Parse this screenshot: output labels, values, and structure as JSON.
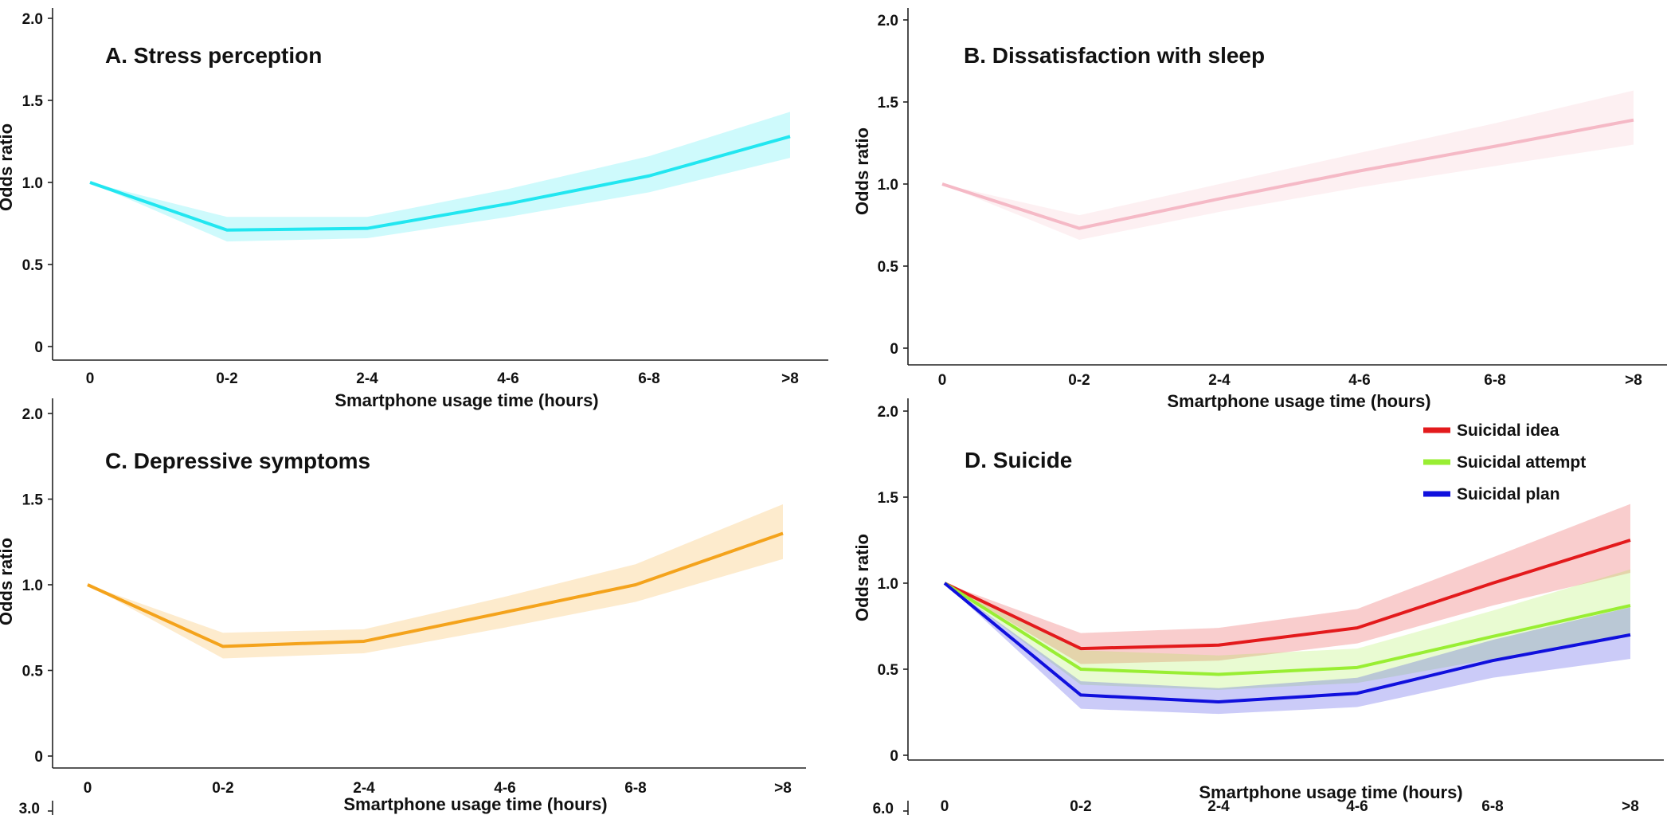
{
  "figure_title": "",
  "chart_data": [
    {
      "type": "line",
      "panel": "A",
      "title": "A. Stress perception",
      "xlabel": "Smartphone usage time (hours)",
      "ylabel": "Odds ratio",
      "categories": [
        "0",
        "0-2",
        "2-4",
        "4-6",
        "6-8",
        ">8"
      ],
      "yticks": [
        "0",
        "0.5",
        "1.0",
        "1.5",
        "2.0"
      ],
      "ylim": [
        0,
        2.0
      ],
      "grid": false,
      "series": [
        {
          "name": "",
          "color": "#22e6f0",
          "values": [
            1.0,
            0.71,
            0.72,
            0.87,
            1.04,
            1.28
          ],
          "lower": [
            1.0,
            0.64,
            0.66,
            0.79,
            0.94,
            1.15
          ],
          "upper": [
            1.0,
            0.79,
            0.79,
            0.96,
            1.16,
            1.43
          ]
        }
      ]
    },
    {
      "type": "line",
      "panel": "B",
      "title": "B. Dissatisfaction with sleep",
      "xlabel": "Smartphone usage time (hours)",
      "ylabel": "Odds ratio",
      "categories": [
        "0",
        "0-2",
        "2-4",
        "4-6",
        "6-8",
        ">8"
      ],
      "yticks": [
        "0",
        "0.5",
        "1.0",
        "1.5",
        "2.0"
      ],
      "ylim": [
        0,
        2.0
      ],
      "grid": false,
      "series": [
        {
          "name": "",
          "color": "#f5b9c6",
          "values": [
            1.0,
            0.73,
            0.91,
            1.08,
            1.23,
            1.39
          ],
          "lower": [
            1.0,
            0.66,
            0.83,
            0.98,
            1.11,
            1.24
          ],
          "upper": [
            1.0,
            0.81,
            1.0,
            1.19,
            1.37,
            1.57
          ]
        }
      ]
    },
    {
      "type": "line",
      "panel": "C",
      "title": "C. Depressive symptoms",
      "xlabel": "Smartphone usage time (hours)",
      "ylabel": "Odds ratio",
      "categories": [
        "0",
        "0-2",
        "2-4",
        "4-6",
        "6-8",
        ">8"
      ],
      "yticks": [
        "0",
        "0.5",
        "1.0",
        "1.5",
        "2.0"
      ],
      "ylim": [
        0,
        2.0
      ],
      "grid": false,
      "series": [
        {
          "name": "",
          "color": "#f4a31c",
          "values": [
            1.0,
            0.64,
            0.67,
            0.84,
            1.0,
            1.3
          ],
          "lower": [
            1.0,
            0.57,
            0.6,
            0.75,
            0.9,
            1.15
          ],
          "upper": [
            1.0,
            0.72,
            0.74,
            0.93,
            1.12,
            1.47
          ]
        }
      ]
    },
    {
      "type": "line",
      "panel": "D",
      "title": "D. Suicide",
      "xlabel": "Smartphone usage time (hours)",
      "ylabel": "Odds ratio",
      "categories": [
        "0",
        "0-2",
        "2-4",
        "4-6",
        "6-8",
        ">8"
      ],
      "yticks": [
        "0",
        "0.5",
        "1.0",
        "1.5",
        "2.0"
      ],
      "ylim": [
        0,
        2.0
      ],
      "grid": false,
      "legend_position": "top-right",
      "series": [
        {
          "name": "Suicidal idea",
          "color": "#e31a1c",
          "values": [
            1.0,
            0.62,
            0.64,
            0.74,
            1.0,
            1.25
          ],
          "lower": [
            1.0,
            0.53,
            0.55,
            0.65,
            0.87,
            1.06
          ],
          "upper": [
            1.0,
            0.71,
            0.74,
            0.85,
            1.15,
            1.46
          ]
        },
        {
          "name": "Suicidal attempt",
          "color": "#99ee33",
          "values": [
            1.0,
            0.5,
            0.47,
            0.51,
            0.69,
            0.87
          ],
          "lower": [
            1.0,
            0.41,
            0.38,
            0.42,
            0.56,
            0.69
          ],
          "upper": [
            1.0,
            0.61,
            0.58,
            0.62,
            0.84,
            1.08
          ]
        },
        {
          "name": "Suicidal plan",
          "color": "#1010dd",
          "values": [
            1.0,
            0.35,
            0.31,
            0.36,
            0.55,
            0.7
          ],
          "lower": [
            1.0,
            0.27,
            0.24,
            0.28,
            0.45,
            0.56
          ],
          "upper": [
            1.0,
            0.43,
            0.39,
            0.45,
            0.67,
            0.86
          ]
        }
      ]
    },
    {
      "type": "line",
      "panel": "E",
      "title": "",
      "xlabel": "",
      "ylabel": "",
      "categories": [],
      "yticks": [
        "3.0"
      ],
      "ylim": [
        0,
        3.0
      ],
      "partially_visible": true,
      "series": []
    },
    {
      "type": "line",
      "panel": "F",
      "title": "",
      "xlabel": "",
      "ylabel": "",
      "categories": [],
      "yticks": [
        "6.0"
      ],
      "ylim": [
        0,
        6.0
      ],
      "partially_visible": true,
      "series": []
    }
  ]
}
